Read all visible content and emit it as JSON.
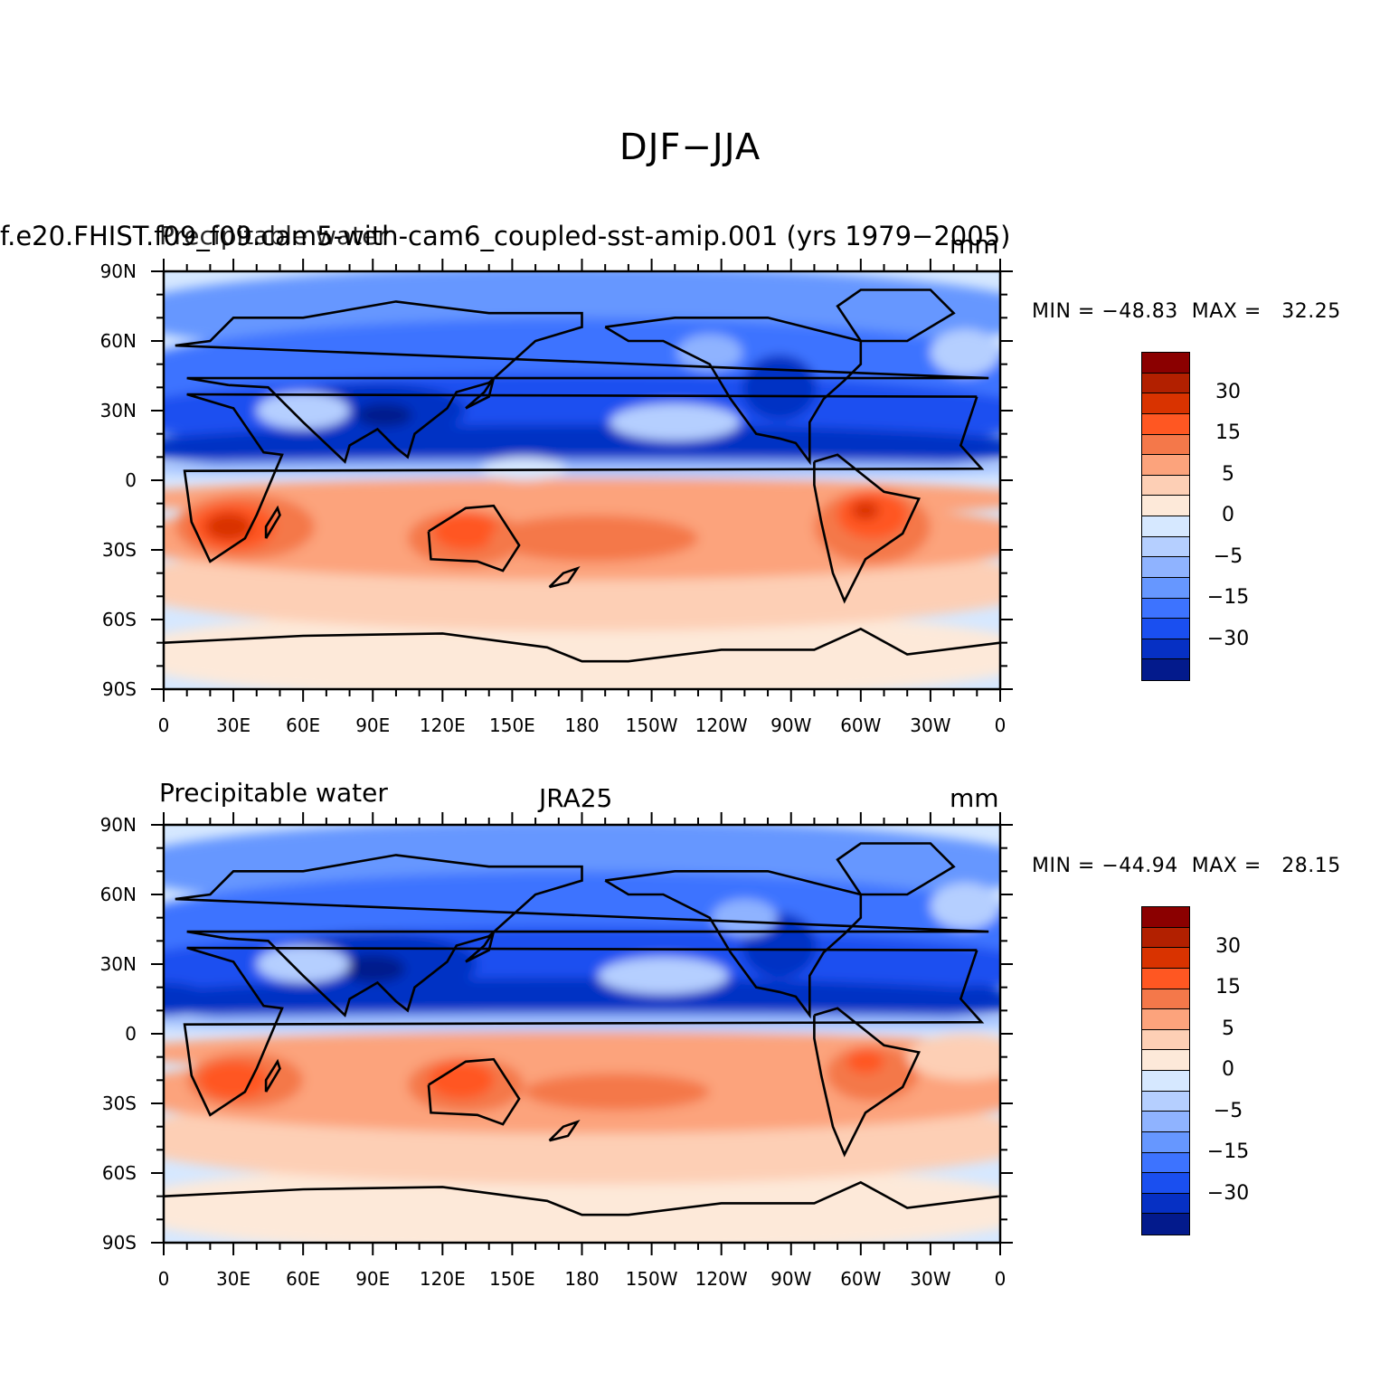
{
  "main_title": "DJF−JJA",
  "panels": [
    {
      "id": "model",
      "left_title": "Precipitable water",
      "center_title": "f.e20.FHIST.f09_f09.cam5-with-cam6_coupled-sst-amip.001 (yrs 1979−2005)",
      "right_title": "mm",
      "min_max": "MIN = −48.83  MAX =   32.25"
    },
    {
      "id": "obs",
      "left_title": "Precipitable water",
      "center_title": "JRA25",
      "right_title": "mm",
      "min_max": "MIN = −44.94  MAX =   28.15"
    }
  ],
  "axes": {
    "lat_labels": [
      "90N",
      "60N",
      "30N",
      "0",
      "30S",
      "60S",
      "90S"
    ],
    "lon_labels": [
      "0",
      "30E",
      "60E",
      "90E",
      "120E",
      "150E",
      "180",
      "150W",
      "120W",
      "90W",
      "60W",
      "30W",
      "0"
    ]
  },
  "colorbar": {
    "colors": [
      "#8b0000",
      "#b22000",
      "#d93300",
      "#ff5722",
      "#f4784a",
      "#fca37c",
      "#fdcfb5",
      "#fde9d9",
      "#d6e8ff",
      "#b5cfff",
      "#8fb3ff",
      "#6697ff",
      "#3d73ff",
      "#1a4ff0",
      "#0630c4",
      "#031a8c"
    ],
    "labels": [
      "30",
      "15",
      "5",
      "0",
      "−5",
      "−15",
      "−30"
    ]
  },
  "chart_data": {
    "type": "heatmap",
    "title": "DJF−JJA",
    "variable": "Precipitable water",
    "units": "mm",
    "contour_levels": [
      -40,
      -35,
      -30,
      -25,
      -15,
      -10,
      -5,
      -2,
      0,
      2,
      5,
      10,
      15,
      25,
      30,
      35
    ],
    "colorbar_tick_labels": [
      30,
      15,
      5,
      0,
      -5,
      -15,
      -30
    ],
    "xlim": [
      0,
      360
    ],
    "ylim": [
      -90,
      90
    ],
    "panels": [
      {
        "name": "f.e20.FHIST.f09_f09.cam5-with-cam6_coupled-sst-amip.001 (yrs 1979−2005)",
        "min": -48.83,
        "max": 32.25
      },
      {
        "name": "JRA25",
        "min": -44.94,
        "max": 28.15
      }
    ]
  }
}
